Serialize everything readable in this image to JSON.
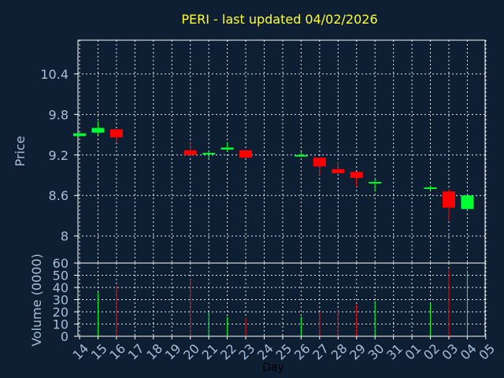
{
  "colors": {
    "background": "#0f1f33",
    "up": "#00ff33",
    "down": "#ff0000",
    "title": "#ffff33",
    "text": "#a7bfd8",
    "grid": "#ffffff"
  },
  "chart_data": {
    "type": "candlestick",
    "title": "PERI - last updated 04/02/2026",
    "xlabel": "Day",
    "price_panel": {
      "ylabel": "Price",
      "ylim": [
        7.6,
        10.9
      ],
      "yticks": [
        "10.4",
        "9.8",
        "9.2",
        "8.6",
        "8"
      ]
    },
    "volume_panel": {
      "ylabel": "Volume (0000)",
      "ylim": [
        0,
        60
      ],
      "yticks": [
        "60",
        "50",
        "40",
        "30",
        "20",
        "10",
        "0"
      ]
    },
    "x_labels": [
      "14",
      "15",
      "16",
      "17",
      "18",
      "19",
      "20",
      "21",
      "22",
      "23",
      "24",
      "25",
      "26",
      "27",
      "28",
      "29",
      "30",
      "31",
      "01",
      "02",
      "03",
      "04",
      "05"
    ],
    "candles": [
      {
        "day": "14",
        "open": 9.48,
        "close": 9.52,
        "high": 9.53,
        "low": 9.47,
        "volume": 0
      },
      {
        "day": "15",
        "open": 9.53,
        "close": 9.6,
        "high": 9.7,
        "low": 9.5,
        "volume": 36
      },
      {
        "day": "16",
        "open": 9.58,
        "close": 9.46,
        "high": 9.58,
        "low": 9.38,
        "volume": 41
      },
      {
        "day": "20",
        "open": 9.27,
        "close": 9.2,
        "high": 9.4,
        "low": 9.18,
        "volume": 47
      },
      {
        "day": "21",
        "open": 9.21,
        "close": 9.23,
        "high": 9.26,
        "low": 9.14,
        "volume": 20
      },
      {
        "day": "22",
        "open": 9.28,
        "close": 9.31,
        "high": 9.39,
        "low": 9.25,
        "volume": 16
      },
      {
        "day": "23",
        "open": 9.27,
        "close": 9.16,
        "high": 9.27,
        "low": 9.16,
        "volume": 15
      },
      {
        "day": "26",
        "open": 9.19,
        "close": 9.2,
        "high": 9.24,
        "low": 9.17,
        "volume": 16
      },
      {
        "day": "27",
        "open": 9.16,
        "close": 9.03,
        "high": 9.16,
        "low": 8.9,
        "volume": 20
      },
      {
        "day": "28",
        "open": 8.99,
        "close": 8.93,
        "high": 9.1,
        "low": 8.93,
        "volume": 22
      },
      {
        "day": "29",
        "open": 8.95,
        "close": 8.86,
        "high": 8.95,
        "low": 8.73,
        "volume": 26
      },
      {
        "day": "30",
        "open": 8.78,
        "close": 8.8,
        "high": 8.85,
        "low": 8.66,
        "volume": 29
      },
      {
        "day": "02",
        "open": 8.71,
        "close": 8.72,
        "high": 8.75,
        "low": 8.68,
        "volume": 27
      },
      {
        "day": "03",
        "open": 8.66,
        "close": 8.42,
        "high": 8.7,
        "low": 8.23,
        "volume": 55
      },
      {
        "day": "04",
        "open": 8.4,
        "close": 8.6,
        "high": 8.61,
        "low": 8.38,
        "volume": 54
      }
    ]
  }
}
